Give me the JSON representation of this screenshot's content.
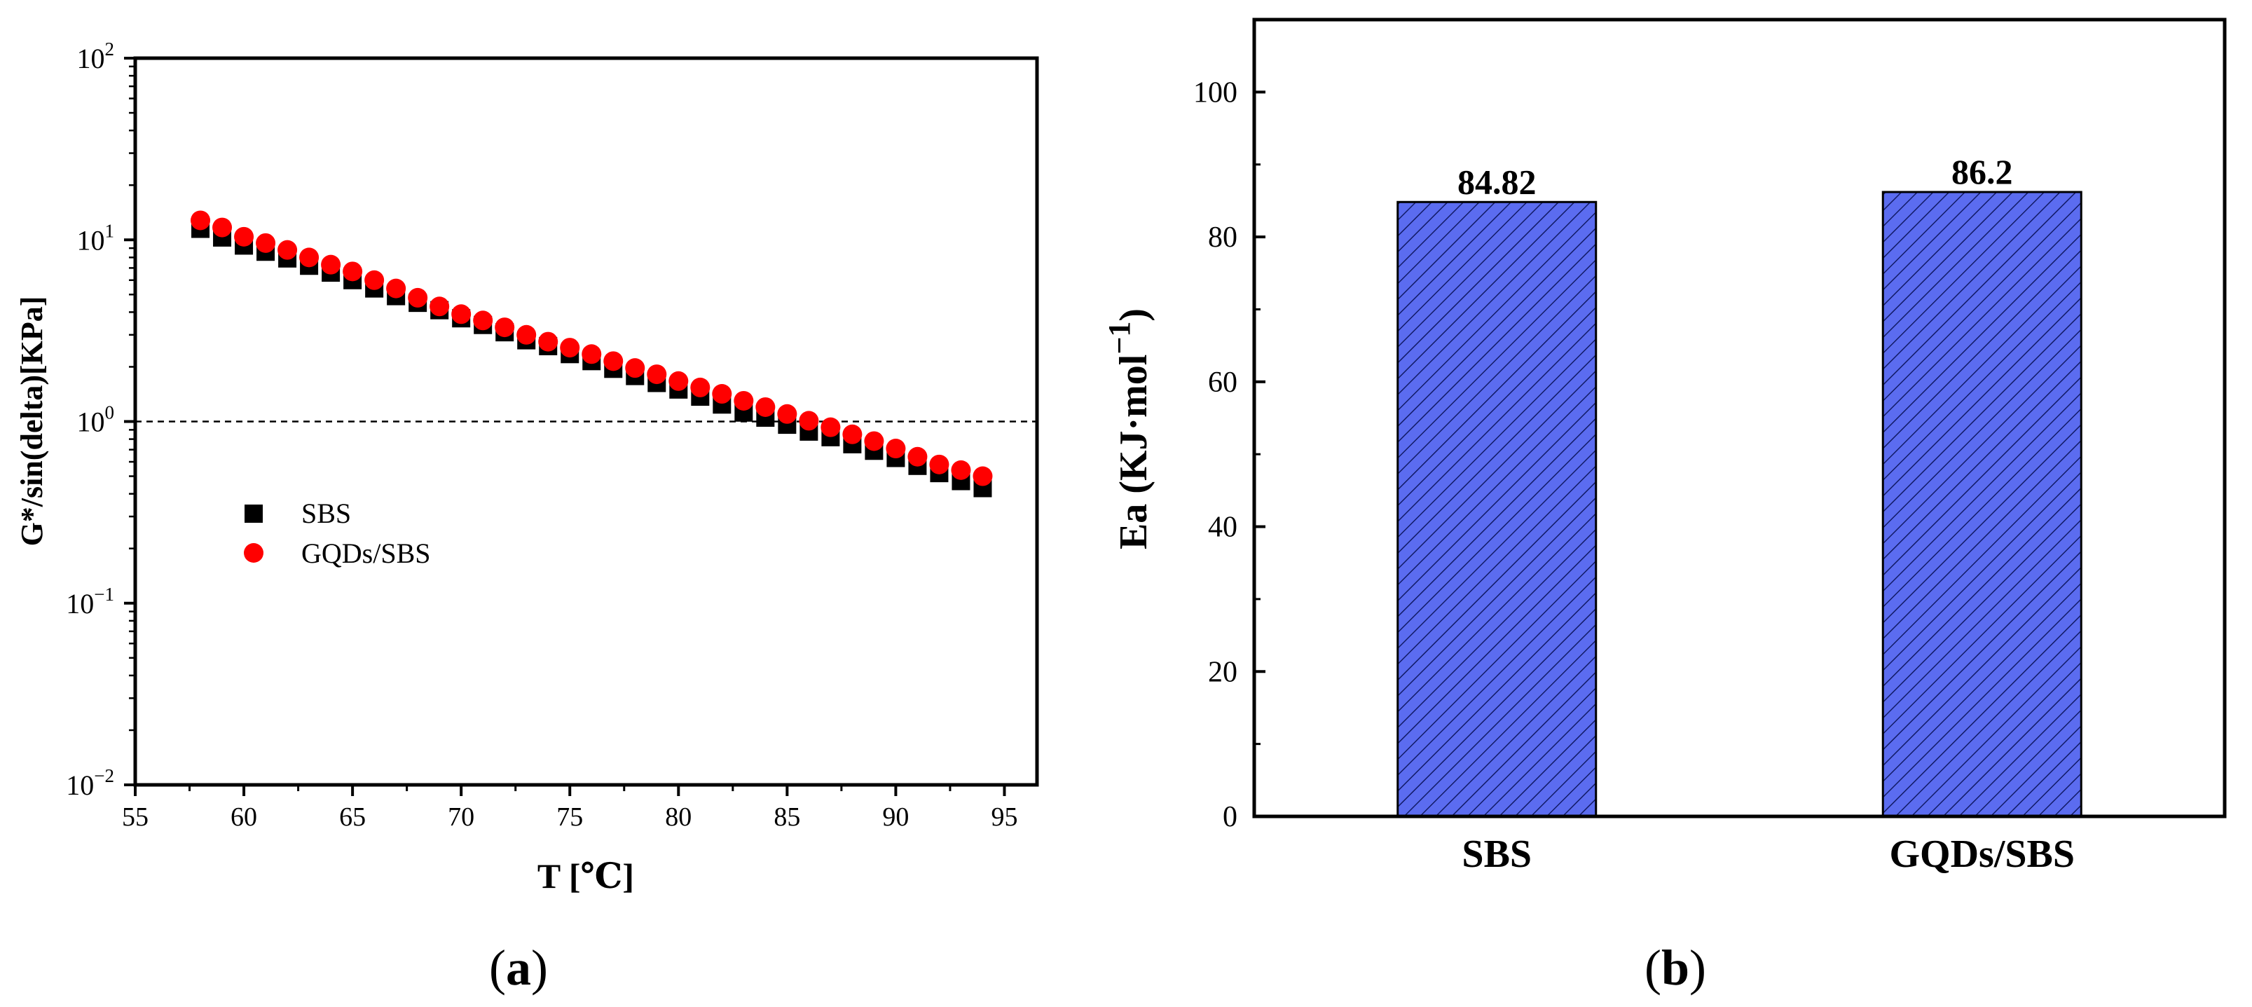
{
  "chart_data": [
    {
      "type": "scatter",
      "panel_label": "(a)",
      "panel_letter": "a",
      "title": "",
      "xlabel": "T [℃]",
      "ylabel": "G*/sin(delta)[KPa]",
      "xscale": "linear",
      "yscale": "log",
      "xlim": [
        55,
        96.5
      ],
      "ylim": [
        0.01,
        100
      ],
      "x_ticks": [
        55,
        60,
        65,
        70,
        75,
        80,
        85,
        90,
        95
      ],
      "x_tick_labels": [
        "55",
        "60",
        "65",
        "70",
        "75",
        "80",
        "85",
        "90",
        "95"
      ],
      "y_ticks": [
        0.01,
        0.1,
        1,
        10,
        100
      ],
      "y_tick_labels": [
        {
          "base": "10",
          "exp": "−2"
        },
        {
          "base": "10",
          "exp": "−1"
        },
        {
          "base": "10",
          "exp": "0"
        },
        {
          "base": "10",
          "exp": "1"
        },
        {
          "base": "10",
          "exp": "2"
        }
      ],
      "reference_line": {
        "y": 1,
        "style": "dashed"
      },
      "legend_position": "center-left",
      "x": [
        58,
        59,
        60,
        61,
        62,
        63,
        64,
        65,
        66,
        67,
        68,
        69,
        70,
        71,
        72,
        73,
        74,
        75,
        76,
        77,
        78,
        79,
        80,
        81,
        82,
        83,
        84,
        85,
        86,
        87,
        88,
        89,
        90,
        91,
        92,
        93,
        94
      ],
      "series": [
        {
          "name": "SBS",
          "marker": "square",
          "color": "#000000",
          "values": [
            11.5,
            10.3,
            9.3,
            8.6,
            7.9,
            7.2,
            6.6,
            6.0,
            5.4,
            4.9,
            4.5,
            4.1,
            3.7,
            3.4,
            3.1,
            2.8,
            2.6,
            2.35,
            2.15,
            1.95,
            1.78,
            1.63,
            1.5,
            1.37,
            1.24,
            1.12,
            1.05,
            0.96,
            0.88,
            0.82,
            0.75,
            0.69,
            0.63,
            0.57,
            0.52,
            0.47,
            0.43
          ]
        },
        {
          "name": "GQDs/SBS",
          "marker": "circle",
          "color": "#ff0000",
          "values": [
            12.8,
            11.7,
            10.4,
            9.6,
            8.8,
            8.0,
            7.3,
            6.7,
            6.0,
            5.4,
            4.8,
            4.3,
            3.9,
            3.6,
            3.3,
            3.0,
            2.75,
            2.55,
            2.35,
            2.15,
            1.97,
            1.82,
            1.67,
            1.54,
            1.42,
            1.3,
            1.2,
            1.1,
            1.01,
            0.93,
            0.85,
            0.78,
            0.71,
            0.64,
            0.58,
            0.54,
            0.5
          ]
        }
      ]
    },
    {
      "type": "bar",
      "panel_label": "(b)",
      "panel_letter": "b",
      "title": "",
      "xlabel": "",
      "ylabel": "Ea (KJ·mol",
      "ylabel_exp": "−1",
      "ylabel_close": ")",
      "ylim": [
        0,
        110
      ],
      "y_ticks": [
        0,
        20,
        40,
        60,
        80,
        100
      ],
      "y_tick_labels": [
        "0",
        "20",
        "40",
        "60",
        "80",
        "100"
      ],
      "categories": [
        "SBS",
        "GQDs/SBS"
      ],
      "values": [
        84.82,
        86.2
      ],
      "data_labels": [
        "84.82",
        "86.2"
      ],
      "bar_color": "#5b6cf0",
      "bar_pattern": "diagonal hatch"
    }
  ]
}
